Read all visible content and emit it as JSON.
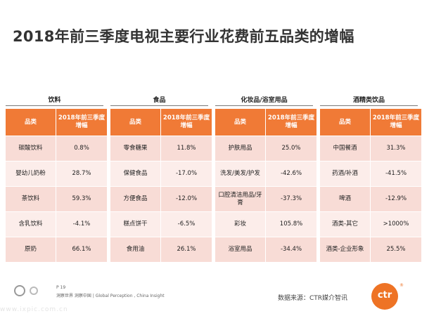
{
  "title": "2018年前三季度电视主要行业花费前五品类的增幅",
  "groups": [
    {
      "title": "饮料",
      "header": {
        "category": "品类",
        "growth": "2018年前三季度增幅"
      },
      "rows": [
        {
          "category": "碳酸饮料",
          "growth": "0.8%"
        },
        {
          "category": "婴幼儿奶粉",
          "growth": "28.7%"
        },
        {
          "category": "茶饮料",
          "growth": "59.3%"
        },
        {
          "category": "含乳饮料",
          "growth": "-4.1%"
        },
        {
          "category": "原奶",
          "growth": "66.1%"
        }
      ]
    },
    {
      "title": "食品",
      "header": {
        "category": "品类",
        "growth": "2018年前三季度增幅"
      },
      "rows": [
        {
          "category": "零食糖果",
          "growth": "11.8%"
        },
        {
          "category": "保健食品",
          "growth": "-17.0%"
        },
        {
          "category": "方便食品",
          "growth": "-12.0%"
        },
        {
          "category": "糕点饼干",
          "growth": "-6.5%"
        },
        {
          "category": "食用油",
          "growth": "26.1%"
        }
      ]
    },
    {
      "title": "化妆品/浴室用品",
      "header": {
        "category": "品类",
        "growth": "2018年前三季度增幅"
      },
      "rows": [
        {
          "category": "护肤用品",
          "growth": "25.0%"
        },
        {
          "category": "洗发/美发/护发",
          "growth": "-42.6%"
        },
        {
          "category": "口腔清洁用品/牙膏",
          "growth": "-37.3%"
        },
        {
          "category": "彩妆",
          "growth": "105.8%"
        },
        {
          "category": "浴室用品",
          "growth": "-34.4%"
        }
      ]
    },
    {
      "title": "酒精类饮品",
      "header": {
        "category": "品类",
        "growth": "2018年前三季度增幅"
      },
      "rows": [
        {
          "category": "中国餐酒",
          "growth": "31.3%"
        },
        {
          "category": "药酒/补酒",
          "growth": "-41.5%"
        },
        {
          "category": "啤酒",
          "growth": "-12.9%"
        },
        {
          "category": "酒类-其它",
          "growth": ">1000%"
        },
        {
          "category": "酒类-企业形象",
          "growth": "25.5%"
        }
      ]
    }
  ],
  "footer": {
    "page": "P 19",
    "slogan": "洞察世界 洞察中国 | Global Perception , China Insight",
    "source": "数据来源：CTR媒介智讯",
    "logo_text": "ctr",
    "logo_reg": "®",
    "watermark": "www.ixpic.com.cn"
  },
  "colors": {
    "header_bg": "#f07a36",
    "row_odd": "#f8dcd6",
    "row_even": "#fcedea",
    "brand": "#ee7325"
  }
}
